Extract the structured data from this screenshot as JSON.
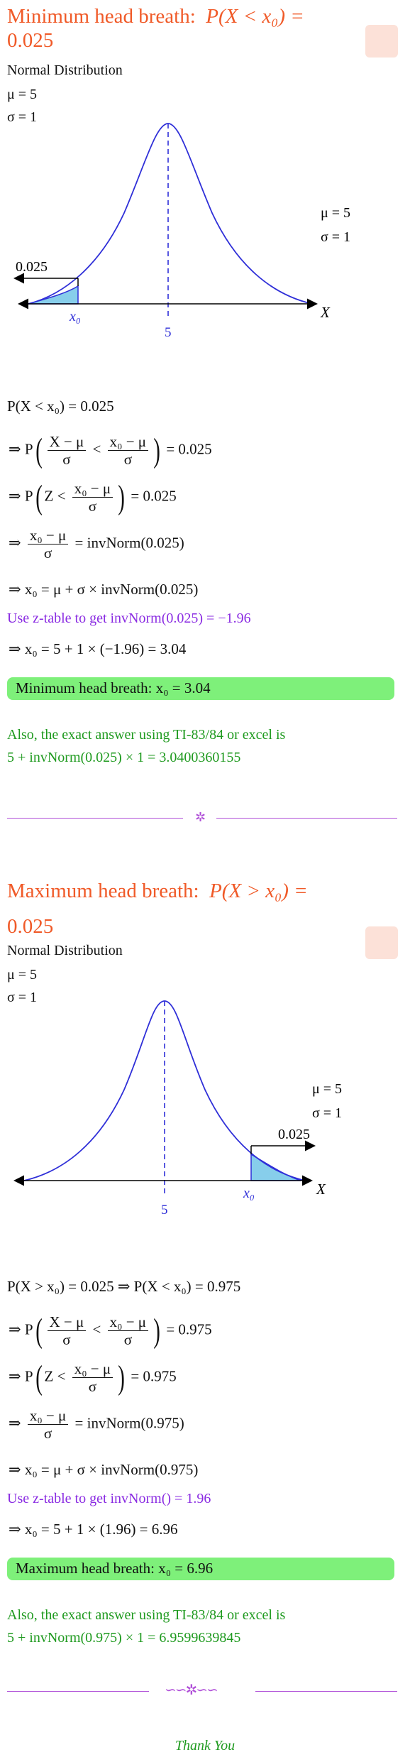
{
  "section1": {
    "title_prefix": "Minimum head breath:",
    "title_expr": "P(X < x₀) =",
    "title_value": "0.025",
    "dist_label": "Normal Distribution",
    "mu": "μ = 5",
    "sigma": "σ = 1",
    "graph": {
      "area_label": "0.025",
      "x0_label": "x₀",
      "mean_label": "5",
      "axis_label": "X",
      "mu": "μ = 5",
      "sigma": "σ = 1"
    },
    "eq1": "P(X < x₀) = 0.025",
    "eq2_lhs": "⇒ P",
    "eq2_num1": "X − μ",
    "eq2_den1": "σ",
    "eq2_mid": "<",
    "eq2_num2": "x₀ − μ",
    "eq2_den2": "σ",
    "eq2_rhs": "= 0.025",
    "eq3_lhs": "⇒ P",
    "eq3_mid": "Z <",
    "eq3_num": "x₀ − μ",
    "eq3_den": "σ",
    "eq3_rhs": "= 0.025",
    "eq4_lhs": "⇒",
    "eq4_num": "x₀ − μ",
    "eq4_den": "σ",
    "eq4_rhs": "= invNorm(0.025)",
    "eq5": "⇒ x₀ = μ + σ × invNorm(0.025)",
    "ztable": "Use z-table to get invNorm(0.025) = −1.96",
    "eq6": "⇒ x₀ = 5 + 1 × (−1.96) = 3.04",
    "result": "Minimum head breath: x₀ = 3.04",
    "exact_line1": "Also, the exact answer using TI-83/84 or excel is",
    "exact_line2": "5 + invNorm(0.025) × 1 = 3.0400360155"
  },
  "section2": {
    "title_prefix": "Maximum head breath:",
    "title_expr": "P(X > x₀) =",
    "title_value": "0.025",
    "dist_label": "Normal Distribution",
    "mu": "μ = 5",
    "sigma": "σ = 1",
    "graph": {
      "area_label": "0.025",
      "x0_label": "x₀",
      "mean_label": "5",
      "axis_label": "X",
      "mu": "μ = 5",
      "sigma": "σ = 1"
    },
    "eq1": "P(X > x₀) = 0.025 ⇒ P(X < x₀) = 0.975",
    "eq2_lhs": "⇒ P",
    "eq2_num1": "X − μ",
    "eq2_den1": "σ",
    "eq2_mid": "<",
    "eq2_num2": "x₀ − μ",
    "eq2_den2": "σ",
    "eq2_rhs": "= 0.975",
    "eq3_lhs": "⇒ P",
    "eq3_mid": "Z <",
    "eq3_num": "x₀ − μ",
    "eq3_den": "σ",
    "eq3_rhs": "= 0.975",
    "eq4_lhs": "⇒",
    "eq4_num": "x₀ − μ",
    "eq4_den": "σ",
    "eq4_rhs": "= invNorm(0.975)",
    "eq5": "⇒ x₀ = μ + σ × invNorm(0.975)",
    "ztable": "Use z-table to get invNorm() = 1.96",
    "eq6": "⇒ x₀ = 5 + 1 × (1.96) = 6.96",
    "result": "Maximum head breath: x₀ = 6.96",
    "exact_line1": "Also, the exact answer using TI-83/84 or excel is",
    "exact_line2": "5 + invNorm(0.975) × 1 = 6.9599639845"
  },
  "footer": "Thank You",
  "colors": {
    "title": "#f05a28",
    "purple": "#8a2be2",
    "green": "#1f9a1f",
    "box": "#7ef07a",
    "curve": "#2f2fd8",
    "shade": "#87ceeb"
  }
}
